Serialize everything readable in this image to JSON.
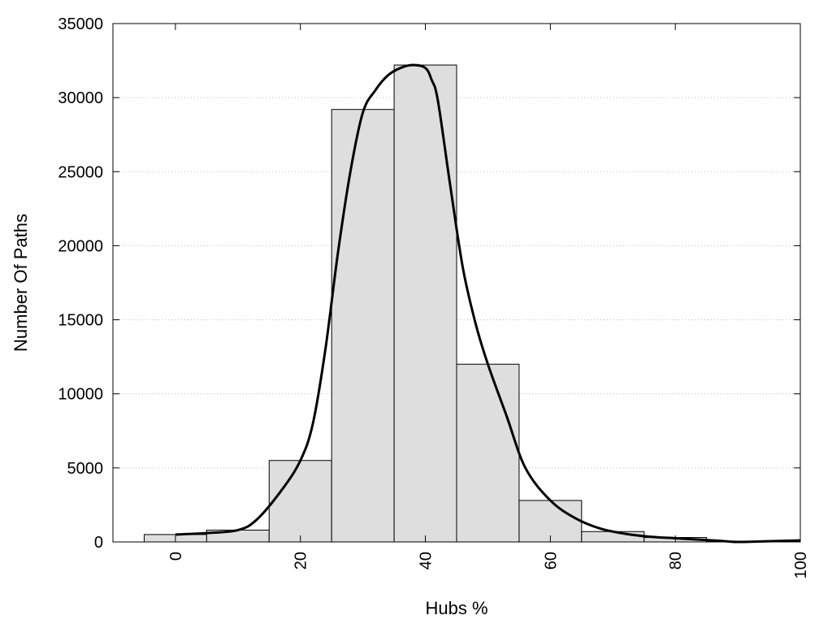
{
  "chart_data": {
    "type": "bar",
    "xlabel": "Hubs %",
    "ylabel": "Number Of Paths",
    "xlim": [
      -10,
      100
    ],
    "ylim": [
      0,
      35000
    ],
    "x_ticks": [
      "0",
      "20",
      "40",
      "60",
      "80",
      "100"
    ],
    "x_tick_values": [
      0,
      20,
      40,
      60,
      80,
      100
    ],
    "y_ticks": [
      "0",
      "5000",
      "10000",
      "15000",
      "20000",
      "25000",
      "30000",
      "35000"
    ],
    "y_tick_values": [
      0,
      5000,
      10000,
      15000,
      20000,
      25000,
      30000,
      35000
    ],
    "grid": "horizontal dotted",
    "bar_color": "#dedede",
    "curve_color": "#000000",
    "bins": [
      {
        "center": 0,
        "value": 500
      },
      {
        "center": 10,
        "value": 800
      },
      {
        "center": 20,
        "value": 5500
      },
      {
        "center": 30,
        "value": 29200
      },
      {
        "center": 40,
        "value": 32200
      },
      {
        "center": 50,
        "value": 12000
      },
      {
        "center": 60,
        "value": 2800
      },
      {
        "center": 70,
        "value": 700
      },
      {
        "center": 80,
        "value": 300
      },
      {
        "center": 90,
        "value": 50
      }
    ],
    "bin_width": 10,
    "curve": [
      [
        0,
        500
      ],
      [
        5,
        600
      ],
      [
        10,
        800
      ],
      [
        13,
        1500
      ],
      [
        17,
        3500
      ],
      [
        20,
        5500
      ],
      [
        22,
        8000
      ],
      [
        24,
        13000
      ],
      [
        26,
        19500
      ],
      [
        28,
        25000
      ],
      [
        30,
        29000
      ],
      [
        32,
        30500
      ],
      [
        34,
        31500
      ],
      [
        36,
        32000
      ],
      [
        38,
        32200
      ],
      [
        40,
        32000
      ],
      [
        41,
        31200
      ],
      [
        42,
        29800
      ],
      [
        44,
        24000
      ],
      [
        46,
        18500
      ],
      [
        48,
        14800
      ],
      [
        50,
        12000
      ],
      [
        53,
        8500
      ],
      [
        56,
        5000
      ],
      [
        60,
        2800
      ],
      [
        64,
        1600
      ],
      [
        68,
        900
      ],
      [
        72,
        550
      ],
      [
        76,
        350
      ],
      [
        80,
        250
      ],
      [
        84,
        150
      ],
      [
        88,
        50
      ],
      [
        90,
        0
      ],
      [
        95,
        50
      ],
      [
        100,
        100
      ]
    ]
  }
}
